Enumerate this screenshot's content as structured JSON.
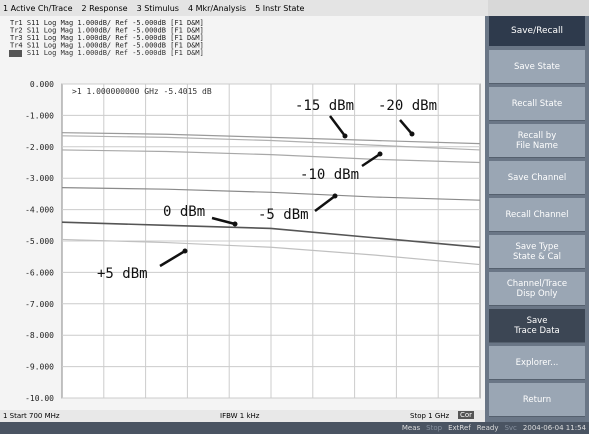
{
  "menu": [
    "1 Active Ch/Trace",
    "2 Response",
    "3 Stimulus",
    "4 Mkr/Analysis",
    "5 Instr State"
  ],
  "trace_info": [
    "Tr1 S11 Log Mag 1.000dB/ Ref -5.000dB [F1 D&M]",
    "Tr2 S11 Log Mag 1.000dB/ Ref -5.000dB [F1 D&M]",
    "Tr3 S11 Log Mag 1.000dB/ Ref -5.000dB [F1 D&M]",
    "Tr4 S11 Log Mag 1.000dB/ Ref -5.000dB [F1 D&M]",
    "Tr5 S11 Log Mag 1.000dB/ Ref -5.000dB [F1 D&M]"
  ],
  "marker": ">1  1.000000000 GHz -5.4015 dB",
  "chart_data": {
    "type": "line",
    "x": [
      700,
      775,
      850,
      925,
      1000
    ],
    "xlim": [
      700,
      1000
    ],
    "ylim": [
      -10,
      0
    ],
    "yticks": [
      {
        "value": 0,
        "label": "0.000"
      },
      {
        "value": -1,
        "label": "-1.000"
      },
      {
        "value": -2,
        "label": "-2.000"
      },
      {
        "value": -3,
        "label": "-3.000"
      },
      {
        "value": -4,
        "label": "-4.000"
      },
      {
        "value": -5,
        "label": "-5.000"
      },
      {
        "value": -6,
        "label": "-6.000"
      },
      {
        "value": -7,
        "label": "-7.000"
      },
      {
        "value": -8,
        "label": "-8.000"
      },
      {
        "value": -9,
        "label": "-9.000"
      },
      {
        "value": -10,
        "label": "-10.00"
      }
    ],
    "grid": true,
    "series": [
      {
        "name": "-20 dBm",
        "color": "#9a9a9a",
        "values": [
          -1.55,
          -1.6,
          -1.7,
          -1.8,
          -1.9
        ]
      },
      {
        "name": "-15 dBm",
        "color": "#b0b0b0",
        "values": [
          -1.65,
          -1.7,
          -1.8,
          -1.95,
          -2.1
        ]
      },
      {
        "name": "-10 dBm",
        "color": "#a8a8a8",
        "values": [
          -2.1,
          -2.15,
          -2.25,
          -2.4,
          -2.5
        ]
      },
      {
        "name": "-5 dBm",
        "color": "#8a8a8a",
        "values": [
          -3.3,
          -3.35,
          -3.45,
          -3.6,
          -3.7
        ]
      },
      {
        "name": "0 dBm",
        "color": "#555555",
        "values": [
          -4.4,
          -4.5,
          -4.6,
          -4.9,
          -5.2
        ]
      },
      {
        "name": "+5 dBm",
        "color": "#c0c0c0",
        "values": [
          -4.95,
          -5.05,
          -5.2,
          -5.45,
          -5.75
        ]
      }
    ]
  },
  "status": {
    "start": "1  Start 700 MHz",
    "ifbw": "IFBW 1 kHz",
    "stop": "Stop 1 GHz",
    "cor": "Cor"
  },
  "softkeys": {
    "title": "Save/Recall",
    "keys": [
      [
        "Save State"
      ],
      [
        "Recall State"
      ],
      [
        "Recall by",
        "File Name"
      ],
      [
        "Save Channel"
      ],
      [
        "Recall Channel"
      ],
      [
        "Save Type",
        "State & Cal"
      ],
      [
        "Channel/Trace",
        "Disp Only"
      ],
      [
        "Save",
        "Trace Data"
      ],
      [
        "Explorer..."
      ],
      [
        "Return"
      ]
    ]
  },
  "bottom_bar": [
    "Meas",
    "Stop",
    "ExtRef",
    "Ready",
    "Svc",
    "2004-06-04 11:54"
  ]
}
